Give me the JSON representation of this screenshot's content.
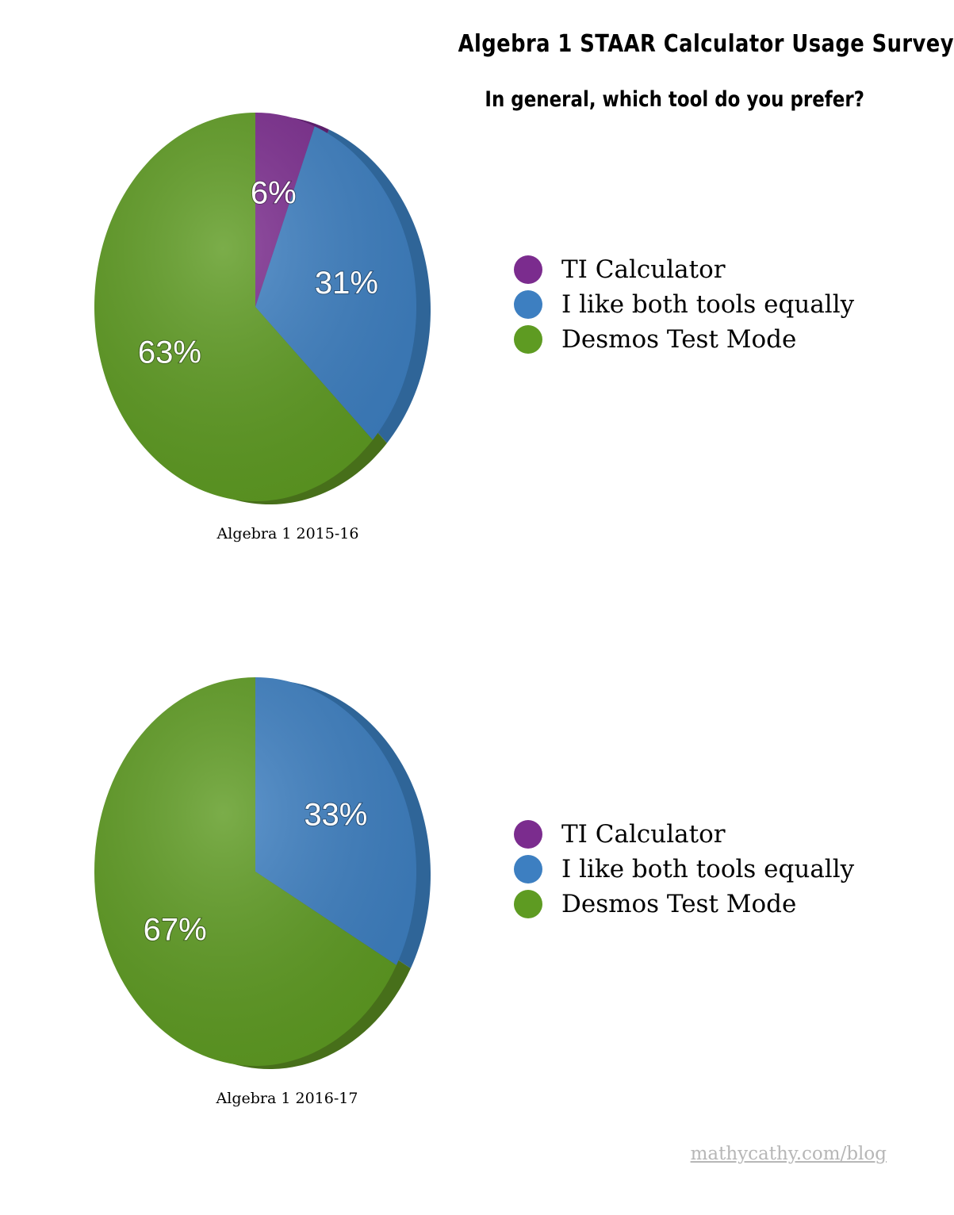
{
  "header": {
    "title": "Algebra 1 STAAR Calculator Usage Survey",
    "subtitle": "In general, which tool do you prefer?"
  },
  "colors": {
    "ti": "#7b2c8e",
    "both": "#3d7fc1",
    "desmos": "#5e9b22"
  },
  "chart_data": [
    {
      "type": "pie",
      "caption": "Algebra 1 2015-16",
      "categories": [
        "TI Calculator",
        "I like both tools equally",
        "Desmos Test Mode"
      ],
      "values": [
        6,
        31,
        63
      ],
      "labels": [
        "6%",
        "31%",
        "63%"
      ],
      "legend_position": "right"
    },
    {
      "type": "pie",
      "caption": "Algebra 1 2016-17",
      "categories": [
        "TI Calculator",
        "I like both tools equally",
        "Desmos Test Mode"
      ],
      "values": [
        0,
        33,
        67
      ],
      "labels": [
        "",
        "33%",
        "67%"
      ],
      "legend_position": "right"
    }
  ],
  "footer": {
    "link": "mathycathy.com/blog"
  }
}
